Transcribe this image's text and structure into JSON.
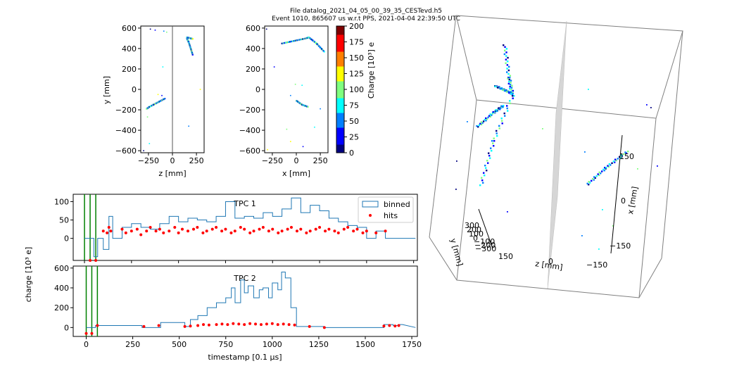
{
  "header": {
    "title_line1": "File datalog_2021_04_05_00_39_35_CESTevd.h5",
    "title_line2": "Event 1010, 865607 us w.r.t PPS, 2021-04-04 22:39:50 UTC"
  },
  "colors": {
    "tpc_line": "#1f77b4",
    "hits": "#ff0000",
    "vertical_markers": "#008000",
    "frame": "#000000",
    "box_edge": "#808080"
  },
  "chart_data": [
    {
      "type": "scatter",
      "name": "zy-projection",
      "xlabel": "z [mm]",
      "ylabel": "y [mm]",
      "xlim": [
        -330,
        330
      ],
      "ylim": [
        -620,
        620
      ],
      "xticks": [
        -250,
        0,
        250
      ],
      "yticks": [
        -600,
        -400,
        -200,
        0,
        200,
        400,
        600
      ],
      "anode_line_z": 0,
      "tracks": [
        {
          "x": [
            150,
            160,
            170,
            180,
            190,
            200,
            210
          ],
          "y": [
            500,
            480,
            460,
            430,
            400,
            370,
            340
          ]
        },
        {
          "x": [
            150,
            170,
            190,
            210
          ],
          "y": [
            510,
            505,
            500,
            495
          ]
        },
        {
          "x": [
            -80,
            -120,
            -160,
            -200,
            -240,
            -270
          ],
          "y": [
            -90,
            -110,
            -130,
            -150,
            -170,
            -190
          ]
        }
      ],
      "points": [
        {
          "x": -230,
          "y": 590
        },
        {
          "x": -180,
          "y": 580
        },
        {
          "x": -90,
          "y": 570
        },
        {
          "x": -100,
          "y": 220
        },
        {
          "x": -260,
          "y": -270
        },
        {
          "x": -150,
          "y": -50
        },
        {
          "x": -110,
          "y": -60
        },
        {
          "x": 170,
          "y": -360
        },
        {
          "x": -240,
          "y": -530
        },
        {
          "x": -60,
          "y": 560
        },
        {
          "x": 290,
          "y": 0
        },
        {
          "x": -300,
          "y": -600
        }
      ]
    },
    {
      "type": "scatter",
      "name": "xy-projection",
      "xlabel": "x [mm]",
      "ylabel": "",
      "xlim": [
        -330,
        330
      ],
      "ylim": [
        -620,
        620
      ],
      "xticks": [
        -250,
        0,
        250
      ],
      "yticks": [
        -600,
        -400,
        -200,
        0,
        200,
        400,
        600
      ],
      "tracks": [
        {
          "x": [
            -150,
            -100,
            -50,
            0,
            50,
            100,
            130
          ],
          "y": [
            450,
            460,
            470,
            480,
            490,
            500,
            510
          ]
        },
        {
          "x": [
            130,
            170,
            210,
            250,
            290
          ],
          "y": [
            510,
            480,
            450,
            410,
            370
          ]
        },
        {
          "x": [
            0,
            30,
            60,
            90,
            120
          ],
          "y": [
            -110,
            -130,
            -150,
            -160,
            -170
          ]
        }
      ],
      "points": [
        {
          "x": -310,
          "y": 590
        },
        {
          "x": -230,
          "y": 220
        },
        {
          "x": -60,
          "y": -60
        },
        {
          "x": 60,
          "y": 40
        },
        {
          "x": -100,
          "y": -390
        },
        {
          "x": -60,
          "y": -510
        },
        {
          "x": 70,
          "y": -560
        },
        {
          "x": 250,
          "y": -190
        },
        {
          "x": 190,
          "y": -370
        },
        {
          "x": -10,
          "y": 50
        },
        {
          "x": -300,
          "y": -590
        }
      ]
    },
    {
      "type": "heatmap",
      "name": "charge-colorbar",
      "ylabel": "Charge [10³] e",
      "ylim": [
        0,
        200
      ],
      "yticks": [
        0,
        25,
        50,
        75,
        100,
        125,
        150,
        175,
        200
      ],
      "colormap": [
        "#00007f",
        "#0000ff",
        "#007fff",
        "#00ffff",
        "#7fff7f",
        "#ffff00",
        "#ff7f00",
        "#ff0000",
        "#7f0000"
      ]
    },
    {
      "type": "line",
      "name": "tpc1-waveform",
      "title": "TPC 1",
      "xlim": [
        -60,
        1770
      ],
      "ylim": [
        -60,
        120
      ],
      "yticks": [
        0,
        50,
        100
      ],
      "xticks": [
        0,
        250,
        500,
        750,
        1000,
        1250,
        1500,
        1750
      ],
      "markers": [
        0,
        30,
        60
      ],
      "series": [
        {
          "name": "binned",
          "x": [
            0,
            50,
            70,
            100,
            130,
            150,
            180,
            200,
            250,
            300,
            350,
            400,
            450,
            500,
            550,
            600,
            650,
            700,
            750,
            800,
            850,
            900,
            950,
            1000,
            1050,
            1100,
            1150,
            1200,
            1250,
            1300,
            1350,
            1400,
            1450,
            1500,
            1550,
            1600,
            1650,
            1700
          ],
          "values": [
            0,
            -50,
            0,
            -30,
            60,
            0,
            0,
            30,
            40,
            30,
            25,
            40,
            60,
            45,
            55,
            50,
            45,
            60,
            100,
            55,
            60,
            55,
            70,
            60,
            80,
            110,
            70,
            90,
            75,
            55,
            45,
            35,
            30,
            0,
            20,
            0,
            0,
            0
          ]
        },
        {
          "name": "hits",
          "x": [
            30,
            60,
            100,
            120,
            130,
            140,
            200,
            220,
            250,
            280,
            300,
            330,
            350,
            380,
            400,
            420,
            450,
            480,
            500,
            520,
            550,
            580,
            600,
            630,
            650,
            680,
            700,
            730,
            750,
            780,
            800,
            830,
            850,
            880,
            900,
            930,
            950,
            980,
            1000,
            1030,
            1050,
            1080,
            1100,
            1130,
            1150,
            1180,
            1200,
            1230,
            1250,
            1280,
            1300,
            1330,
            1350,
            1380,
            1400,
            1430,
            1450,
            1480,
            1500,
            1550,
            1600
          ],
          "values": [
            -60,
            -60,
            20,
            15,
            30,
            20,
            25,
            15,
            20,
            25,
            10,
            20,
            30,
            20,
            25,
            15,
            20,
            30,
            15,
            25,
            20,
            25,
            30,
            15,
            20,
            25,
            30,
            20,
            25,
            15,
            20,
            30,
            25,
            15,
            20,
            25,
            30,
            20,
            25,
            15,
            20,
            25,
            30,
            20,
            25,
            15,
            20,
            25,
            30,
            20,
            25,
            20,
            15,
            25,
            30,
            20,
            25,
            15,
            20,
            15,
            20
          ]
        }
      ],
      "legend": {
        "entries": [
          "binned",
          "hits"
        ],
        "position": "top-right"
      }
    },
    {
      "type": "line",
      "name": "tpc2-waveform",
      "title": "TPC 2",
      "xlabel": "timestamp [0.1 μs]",
      "ylabel": "charge [10³ e]",
      "xlim": [
        -70,
        1780
      ],
      "ylim": [
        -90,
        620
      ],
      "yticks": [
        0,
        200,
        400,
        600
      ],
      "xticks": [
        0,
        250,
        500,
        750,
        1000,
        1250,
        1500,
        1750
      ],
      "markers": [
        0,
        30,
        60
      ],
      "series": [
        {
          "name": "binned",
          "x": [
            0,
            50,
            300,
            400,
            530,
            560,
            600,
            650,
            700,
            750,
            780,
            800,
            830,
            850,
            870,
            900,
            930,
            950,
            980,
            1000,
            1030,
            1050,
            1070,
            1100,
            1130,
            1200,
            1280,
            1600,
            1650,
            1680
          ],
          "values": [
            0,
            20,
            0,
            50,
            10,
            80,
            120,
            200,
            250,
            300,
            400,
            250,
            480,
            350,
            420,
            300,
            380,
            400,
            300,
            450,
            380,
            560,
            500,
            200,
            10,
            10,
            0,
            30,
            20,
            30
          ]
        },
        {
          "name": "hits",
          "x": [
            0,
            30,
            60,
            310,
            390,
            530,
            560,
            600,
            630,
            660,
            700,
            730,
            760,
            790,
            820,
            850,
            880,
            910,
            940,
            970,
            1000,
            1030,
            1060,
            1090,
            1120,
            1200,
            1280,
            1600,
            1630,
            1660,
            1680
          ],
          "values": [
            -60,
            -60,
            20,
            10,
            20,
            10,
            15,
            20,
            30,
            25,
            30,
            35,
            30,
            40,
            35,
            30,
            40,
            35,
            30,
            35,
            40,
            30,
            35,
            30,
            25,
            10,
            0,
            15,
            20,
            15,
            20
          ]
        }
      ]
    },
    {
      "type": "scatter",
      "name": "3d-view",
      "axes": [
        {
          "label": "x [mm]",
          "ticks": [
            "150",
            "0",
            "−150"
          ]
        },
        {
          "label": "y [mm]",
          "ticks": [
            "300",
            "200",
            "100",
            "0",
            "−100",
            "−200",
            "−300"
          ]
        },
        {
          "label": "z [mm]",
          "ticks": [
            "150",
            "0",
            "−150"
          ]
        }
      ]
    }
  ]
}
